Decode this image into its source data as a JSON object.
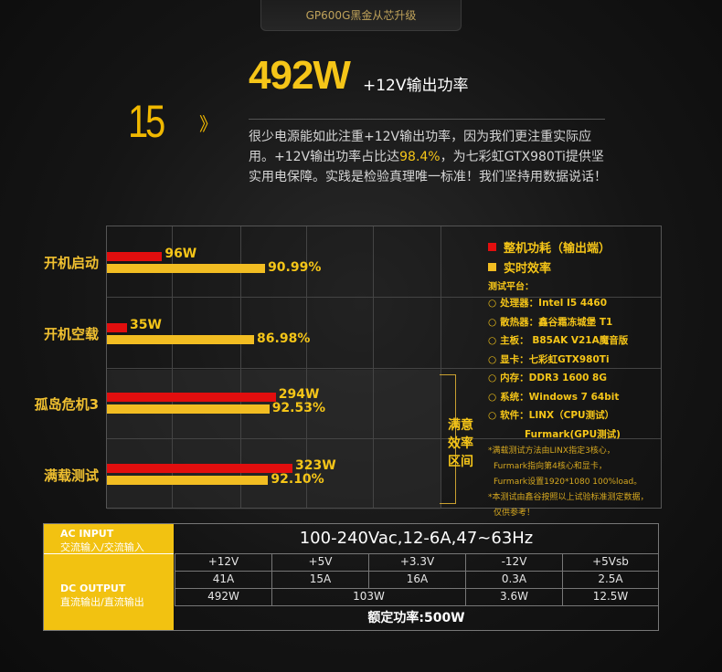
{
  "header": {
    "tab_title": "GP600G黑金从芯升级"
  },
  "section": {
    "number": "15",
    "chevron": "》",
    "headline_value": "492W",
    "headline_suffix": "+12V输出功率",
    "desc_part1": "很少电源能如此注重+12V输出功率，因为我们更注重实际应用。+12V输出功率占比达",
    "desc_highlight": "98.4%",
    "desc_part2": "，为七彩虹GTX980Ti提供坚实用电保障。实践是检验真理唯一标准！我们坚持用数据说话！"
  },
  "chart_data": {
    "type": "bar",
    "categories": [
      "开机启动",
      "开机空载",
      "孤岛危机3",
      "满载测试"
    ],
    "series": [
      {
        "name": "整机功耗（输出端）",
        "values": [
          96,
          35,
          294,
          323
        ],
        "labels": [
          "96W",
          "35W",
          "294W",
          "323W"
        ],
        "color": "#e20e0e"
      },
      {
        "name": "实时效率",
        "values": [
          90.99,
          86.98,
          92.53,
          92.1
        ],
        "labels": [
          "90.99%",
          "86.98%",
          "92.53%",
          "92.10%"
        ],
        "color": "#f2bd22"
      }
    ],
    "bracket_label": [
      "满意",
      "效率",
      "区间"
    ]
  },
  "legend": {
    "test_platform_title": "测试平台：",
    "items": [
      "处理器：Intel I5 4460",
      "散热器：鑫谷霜冻城堡 T1",
      "主板： B85AK V21A魔音版",
      "显卡：七彩虹GTX980Ti",
      "内存：DDR3 1600 8G",
      "系统：Windows 7 64bit",
      "软件：LINX（CPU测试）"
    ],
    "software_cont": "Furmark(GPU测试)",
    "notes": [
      "*满载测试方法由LINX指定3核心，",
      "Furmark指向第4核心和显卡，",
      "Furmark设置1920*1080 100%load。",
      "*本测试由鑫谷按照以上试验标准测定数据，",
      "仅供参考！"
    ]
  },
  "table": {
    "ac_en": "AC INPUT",
    "ac_cn": "交流输入/交流输入",
    "ac_value": "100-240Vac,12-6A,47~63Hz",
    "dc_en": "DC OUTPUT",
    "dc_cn": "直流输出/直流输出",
    "headers": [
      "+12V",
      "+5V",
      "+3.3V",
      "-12V",
      "+5Vsb"
    ],
    "currents": [
      "41A",
      "15A",
      "16A",
      "0.3A",
      "2.5A"
    ],
    "power_12v": "492W",
    "power_5v_33v": "103W",
    "power_neg12v": "3.6W",
    "power_5vsb": "12.5W",
    "rated": "额定功率:500W"
  }
}
